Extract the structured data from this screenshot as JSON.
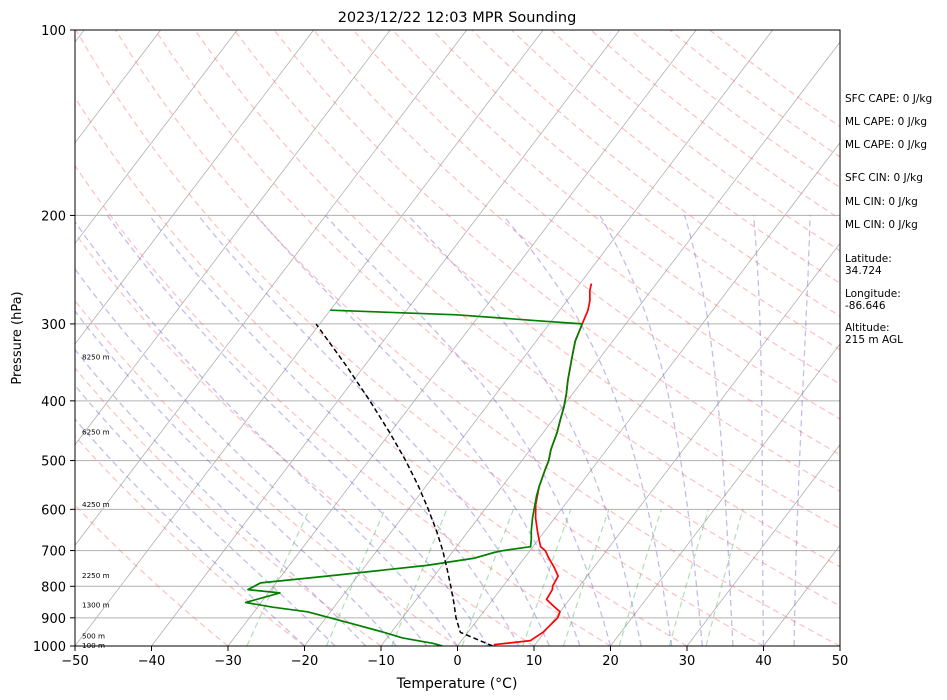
{
  "chart_data": {
    "type": "line",
    "title": "2023/12/22 12:03 MPR Sounding",
    "xlabel": "Temperature (°C)",
    "ylabel": "Pressure (hPa)",
    "xlim": [
      -50,
      50
    ],
    "ylim": [
      1000,
      100
    ],
    "y_scale": "log",
    "x_ticks": [
      "−50",
      "−40",
      "−30",
      "−20",
      "−10",
      "0",
      "10",
      "20",
      "30",
      "40",
      "50"
    ],
    "y_ticks": [
      {
        "p": 100,
        "label": "100"
      },
      {
        "p": 200,
        "label": "200"
      },
      {
        "p": 300,
        "label": "300"
      },
      {
        "p": 400,
        "label": "400"
      },
      {
        "p": 500,
        "label": "500"
      },
      {
        "p": 600,
        "label": "600"
      },
      {
        "p": 700,
        "label": "700"
      },
      {
        "p": 800,
        "label": "800"
      },
      {
        "p": 900,
        "label": "900"
      },
      {
        "p": 1000,
        "label": "1000"
      }
    ],
    "height_labels": [
      {
        "p": 1000,
        "label": "100 m"
      },
      {
        "p": 965,
        "label": "500 m"
      },
      {
        "p": 860,
        "label": "1300 m"
      },
      {
        "p": 770,
        "label": "2250 m"
      },
      {
        "p": 590,
        "label": "4250 m"
      },
      {
        "p": 450,
        "label": "6250 m"
      },
      {
        "p": 340,
        "label": "8250 m"
      }
    ],
    "series": [
      {
        "color": "#ff0000",
        "points": [
          [
            995,
            4.6
          ],
          [
            980,
            9.0
          ],
          [
            950,
            9.8
          ],
          [
            900,
            10.3
          ],
          [
            880,
            10.0
          ],
          [
            860,
            8.5
          ],
          [
            840,
            7.0
          ],
          [
            810,
            6.8
          ],
          [
            800,
            6.5
          ],
          [
            770,
            6.2
          ],
          [
            745,
            4.8
          ],
          [
            720,
            3.2
          ],
          [
            700,
            2.0
          ],
          [
            690,
            1.0
          ],
          [
            670,
            0.0
          ],
          [
            650,
            -1.0
          ],
          [
            620,
            -2.5
          ],
          [
            590,
            -3.8
          ],
          [
            570,
            -4.5
          ],
          [
            550,
            -5.2
          ],
          [
            520,
            -6.0
          ],
          [
            500,
            -6.5
          ],
          [
            480,
            -7.3
          ],
          [
            450,
            -8.2
          ],
          [
            430,
            -9.0
          ],
          [
            410,
            -9.8
          ],
          [
            390,
            -10.8
          ],
          [
            370,
            -12.0
          ],
          [
            340,
            -13.7
          ],
          [
            320,
            -14.9
          ],
          [
            300,
            -15.7
          ],
          [
            285,
            -16.3
          ],
          [
            275,
            -17.0
          ],
          [
            265,
            -18.0
          ],
          [
            258,
            -18.5
          ]
        ]
      },
      {
        "color": "#008000",
        "points": [
          [
            1000,
            -2.0
          ],
          [
            990,
            -3.5
          ],
          [
            970,
            -8.0
          ],
          [
            950,
            -11.0
          ],
          [
            920,
            -16.0
          ],
          [
            880,
            -23.0
          ],
          [
            865,
            -28.0
          ],
          [
            850,
            -32.0
          ],
          [
            820,
            -28.5
          ],
          [
            810,
            -33.0
          ],
          [
            790,
            -32.0
          ],
          [
            770,
            -24.0
          ],
          [
            740,
            -12.0
          ],
          [
            720,
            -6.5
          ],
          [
            705,
            -4.5
          ],
          [
            700,
            -3.5
          ],
          [
            690,
            -0.3
          ],
          [
            670,
            -1.0
          ],
          [
            650,
            -1.8
          ],
          [
            620,
            -2.9
          ],
          [
            590,
            -3.9
          ],
          [
            570,
            -4.6
          ],
          [
            550,
            -5.2
          ],
          [
            520,
            -6.0
          ],
          [
            500,
            -6.5
          ],
          [
            480,
            -7.3
          ],
          [
            450,
            -8.2
          ],
          [
            430,
            -9.0
          ],
          [
            410,
            -9.8
          ],
          [
            390,
            -10.8
          ],
          [
            370,
            -12.0
          ],
          [
            340,
            -13.7
          ],
          [
            320,
            -14.9
          ],
          [
            300,
            -15.7
          ],
          [
            297,
            -21.0
          ],
          [
            290,
            -33.0
          ],
          [
            285,
            -50.0
          ]
        ]
      },
      {
        "color": "#000000",
        "dashed": true,
        "points": [
          [
            1000,
            4.6
          ],
          [
            950,
            -1.0
          ],
          [
            900,
            -3.0
          ],
          [
            850,
            -4.8
          ],
          [
            800,
            -6.8
          ],
          [
            750,
            -9.0
          ],
          [
            700,
            -11.4
          ],
          [
            650,
            -14.2
          ],
          [
            600,
            -17.4
          ],
          [
            550,
            -21.0
          ],
          [
            500,
            -25.2
          ],
          [
            450,
            -30.1
          ],
          [
            400,
            -35.8
          ],
          [
            350,
            -42.5
          ],
          [
            300,
            -50.5
          ]
        ]
      }
    ]
  },
  "stats": [
    {
      "label": "SFC CAPE: 0 J/kg"
    },
    {
      "label": "ML CAPE: 0 J/kg"
    },
    {
      "label": "ML CAPE: 0 J/kg"
    },
    {
      "label": "SFC CIN: 0 J/kg"
    },
    {
      "label": "ML CIN: 0 J/kg"
    },
    {
      "label": "ML CIN: 0 J/kg"
    },
    {
      "label": "Latitude:\n34.724"
    },
    {
      "label": "Longitude:\n-86.646"
    },
    {
      "label": "Altitude:\n215 m AGL"
    }
  ]
}
